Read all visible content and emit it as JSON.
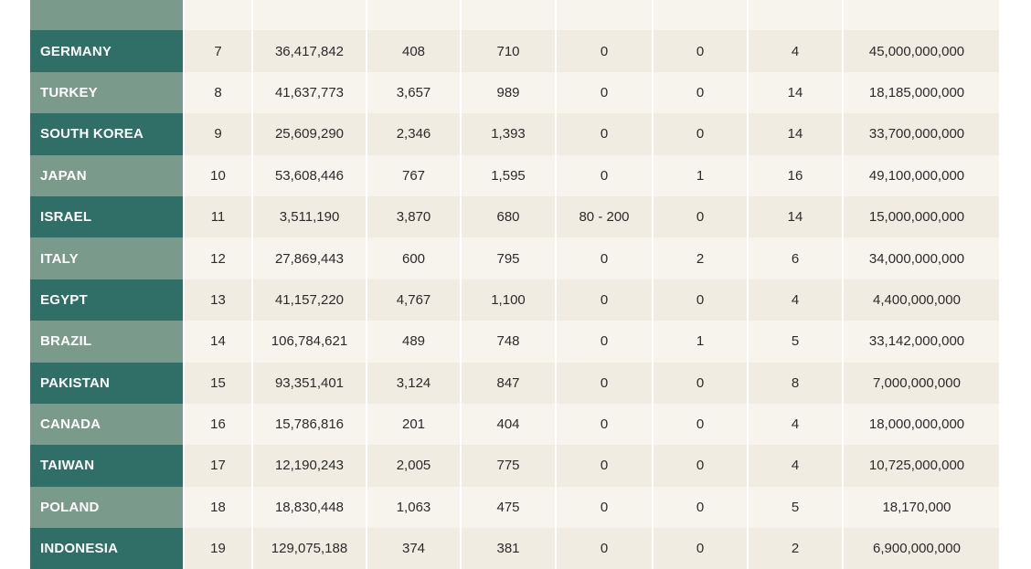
{
  "table": {
    "rows": [
      {
        "country": "",
        "rank": "",
        "c2": "",
        "c3": "",
        "c4": "",
        "c5": "",
        "c6": "",
        "c7": "",
        "c8": ""
      },
      {
        "country": "GERMANY",
        "rank": "7",
        "c2": "36,417,842",
        "c3": "408",
        "c4": "710",
        "c5": "0",
        "c6": "0",
        "c7": "4",
        "c8": "45,000,000,000"
      },
      {
        "country": "TURKEY",
        "rank": "8",
        "c2": "41,637,773",
        "c3": "3,657",
        "c4": "989",
        "c5": "0",
        "c6": "0",
        "c7": "14",
        "c8": "18,185,000,000"
      },
      {
        "country": "SOUTH KOREA",
        "rank": "9",
        "c2": "25,609,290",
        "c3": "2,346",
        "c4": "1,393",
        "c5": "0",
        "c6": "0",
        "c7": "14",
        "c8": "33,700,000,000"
      },
      {
        "country": "JAPAN",
        "rank": "10",
        "c2": "53,608,446",
        "c3": "767",
        "c4": "1,595",
        "c5": "0",
        "c6": "1",
        "c7": "16",
        "c8": "49,100,000,000"
      },
      {
        "country": "ISRAEL",
        "rank": "11",
        "c2": "3,511,190",
        "c3": "3,870",
        "c4": "680",
        "c5": "80 - 200",
        "c6": "0",
        "c7": "14",
        "c8": "15,000,000,000"
      },
      {
        "country": "ITALY",
        "rank": "12",
        "c2": "27,869,443",
        "c3": "600",
        "c4": "795",
        "c5": "0",
        "c6": "2",
        "c7": "6",
        "c8": "34,000,000,000"
      },
      {
        "country": "EGYPT",
        "rank": "13",
        "c2": "41,157,220",
        "c3": "4,767",
        "c4": "1,100",
        "c5": "0",
        "c6": "0",
        "c7": "4",
        "c8": "4,400,000,000"
      },
      {
        "country": "BRAZIL",
        "rank": "14",
        "c2": "106,784,621",
        "c3": "489",
        "c4": "748",
        "c5": "0",
        "c6": "1",
        "c7": "5",
        "c8": "33,142,000,000"
      },
      {
        "country": "PAKISTAN",
        "rank": "15",
        "c2": "93,351,401",
        "c3": "3,124",
        "c4": "847",
        "c5": "0",
        "c6": "0",
        "c7": "8",
        "c8": "7,000,000,000"
      },
      {
        "country": "CANADA",
        "rank": "16",
        "c2": "15,786,816",
        "c3": "201",
        "c4": "404",
        "c5": "0",
        "c6": "0",
        "c7": "4",
        "c8": "18,000,000,000"
      },
      {
        "country": "TAIWAN",
        "rank": "17",
        "c2": "12,190,243",
        "c3": "2,005",
        "c4": "775",
        "c5": "0",
        "c6": "0",
        "c7": "4",
        "c8": "10,725,000,000"
      },
      {
        "country": "POLAND",
        "rank": "18",
        "c2": "18,830,448",
        "c3": "1,063",
        "c4": "475",
        "c5": "0",
        "c6": "0",
        "c7": "5",
        "c8": "18,170,000"
      },
      {
        "country": "INDONESIA",
        "rank": "19",
        "c2": "129,075,188",
        "c3": "374",
        "c4": "381",
        "c5": "0",
        "c6": "0",
        "c7": "2",
        "c8": "6,900,000,000"
      }
    ]
  },
  "colors": {
    "country_dark": "#2f6f68",
    "country_light": "#7a9a8c",
    "cell_dark": "#f1ece1",
    "cell_light": "#f7f4ed"
  }
}
